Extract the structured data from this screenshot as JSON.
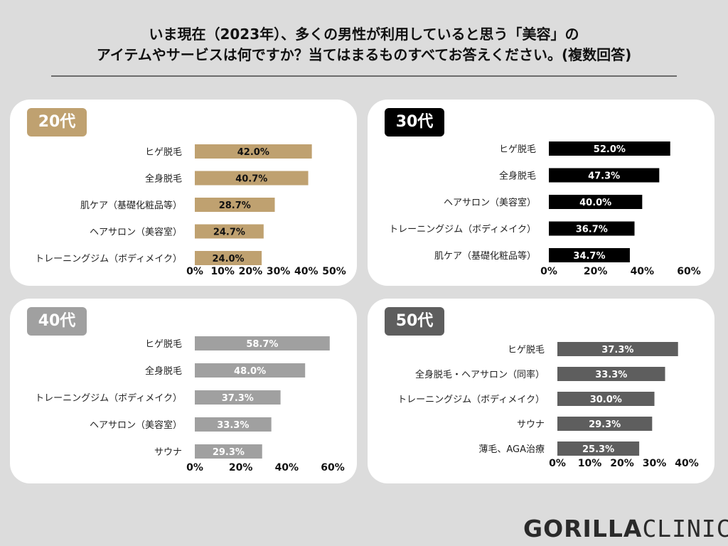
{
  "title": {
    "line1": "いま現在（2023年）、多くの男性が利用していると思う「美容」の",
    "line2": "アイテムやサービスは何ですか？当てはまるものすべてお答えください。(複数回答)"
  },
  "logo": {
    "part1": "GORILLA",
    "part2": "CLINIC"
  },
  "chart_data": [
    {
      "type": "bar",
      "panel": "20代",
      "color": "#bfa170",
      "categories": [
        "ヒゲ脱毛",
        "全身脱毛",
        "肌ケア（基礎化粧品等）",
        "ヘアサロン（美容室）",
        "トレーニングジム（ボディメイク）"
      ],
      "values": [
        42.0,
        40.7,
        28.7,
        24.7,
        24.0
      ],
      "labels": [
        "42.0%",
        "40.7%",
        "28.7%",
        "24.7%",
        "24.0%"
      ],
      "xlim": [
        0,
        50
      ],
      "ticks": [
        "0%",
        "10%",
        "20%",
        "30%",
        "40%",
        "50%"
      ]
    },
    {
      "type": "bar",
      "panel": "30代",
      "color": "#000000",
      "categories": [
        "ヒゲ脱毛",
        "全身脱毛",
        "ヘアサロン（美容室）",
        "トレーニングジム（ボディメイク）",
        "肌ケア（基礎化粧品等）"
      ],
      "values": [
        52.0,
        47.3,
        40.0,
        36.7,
        34.7
      ],
      "labels": [
        "52.0%",
        "47.3%",
        "40.0%",
        "36.7%",
        "34.7%"
      ],
      "xlim": [
        0,
        60
      ],
      "ticks": [
        "0%",
        "20%",
        "40%",
        "60%"
      ]
    },
    {
      "type": "bar",
      "panel": "40代",
      "color": "#a0a0a0",
      "categories": [
        "ヒゲ脱毛",
        "全身脱毛",
        "トレーニングジム（ボディメイク）",
        "ヘアサロン（美容室）",
        "サウナ"
      ],
      "values": [
        58.7,
        48.0,
        37.3,
        33.3,
        29.3
      ],
      "labels": [
        "58.7%",
        "48.0%",
        "37.3%",
        "33.3%",
        "29.3%"
      ],
      "xlim": [
        0,
        60
      ],
      "ticks": [
        "0%",
        "20%",
        "40%",
        "60%"
      ]
    },
    {
      "type": "bar",
      "panel": "50代",
      "color": "#5e5e5e",
      "categories": [
        "ヒゲ脱毛",
        "全身脱毛・ヘアサロン（同率）",
        "トレーニングジム（ボディメイク）",
        "サウナ",
        "薄毛、AGA治療"
      ],
      "values": [
        37.3,
        33.3,
        30.0,
        29.3,
        25.3
      ],
      "labels": [
        "37.3%",
        "33.3%",
        "30.0%",
        "29.3%",
        "25.3%"
      ],
      "xlim": [
        0,
        40
      ],
      "ticks": [
        "0%",
        "10%",
        "20%",
        "30%",
        "40%"
      ]
    }
  ]
}
